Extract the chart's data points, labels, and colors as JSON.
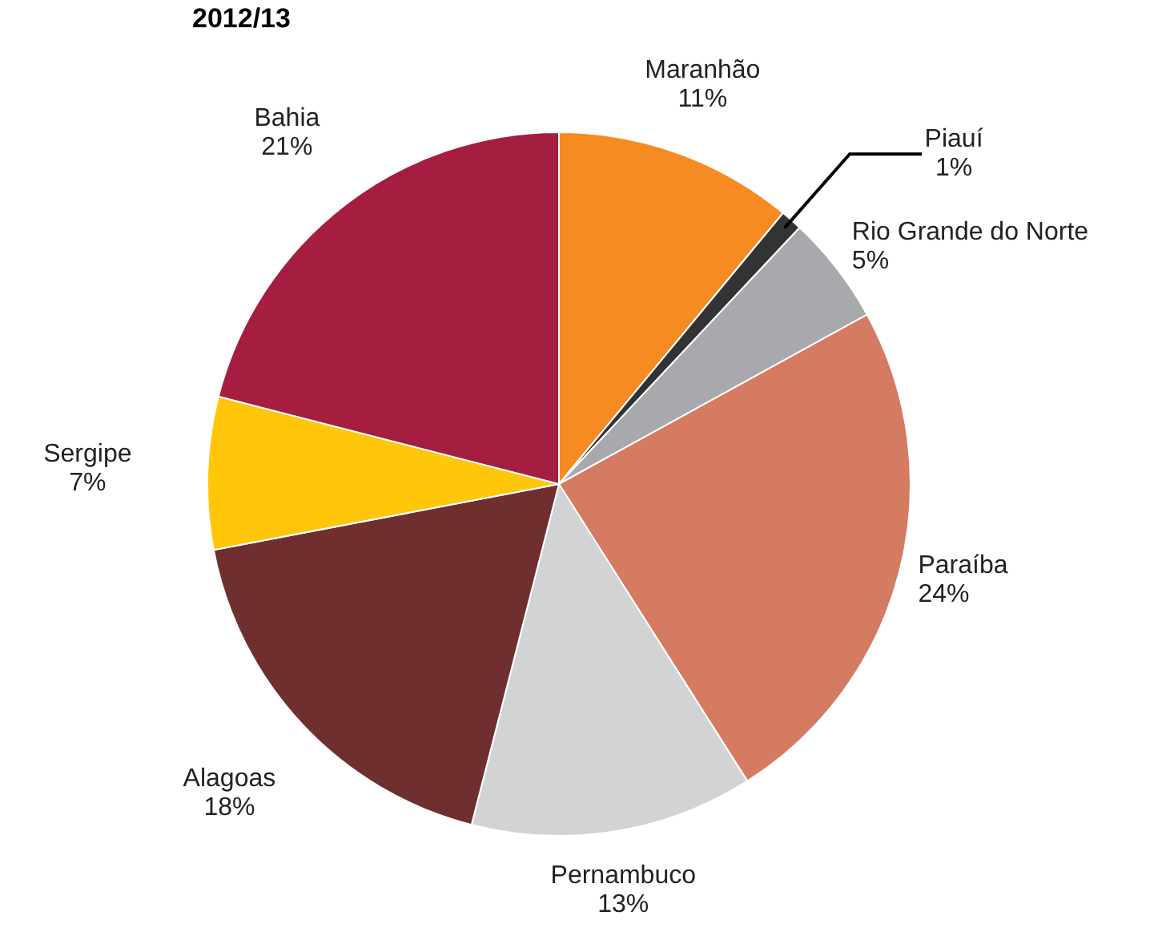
{
  "chart_data": {
    "type": "pie",
    "title": "2012/13",
    "categories": [
      "Maranhão",
      "Piauí",
      "Rio Grande do Norte",
      "Paraíba",
      "Pernambuco",
      "Alagoas",
      "Sergipe",
      "Bahia"
    ],
    "values": [
      11,
      1,
      5,
      24,
      13,
      18,
      7,
      21
    ],
    "colors": [
      "#f68b22",
      "#333333",
      "#a7a9ac",
      "#d47b62",
      "#d1d3d4",
      "#702f2f",
      "#ffc60a",
      "#a51e3f"
    ],
    "value_labels": [
      "11%",
      "1%",
      "5%",
      "24%",
      "13%",
      "18%",
      "7%",
      "21%"
    ],
    "legend": false
  }
}
